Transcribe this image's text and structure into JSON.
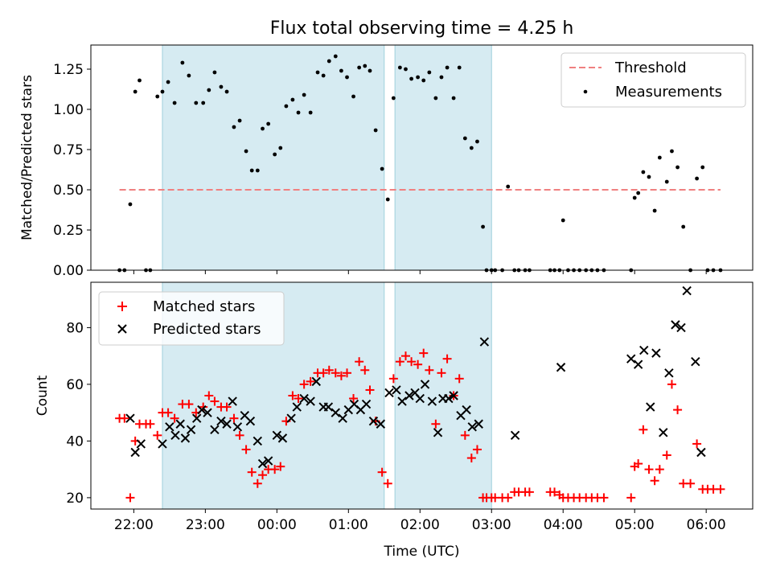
{
  "chart_data": [
    {
      "type": "scatter",
      "title": "Flux total observing time = 4.25 h",
      "xlabel": "",
      "ylabel": "Matched/Predicted stars",
      "xlim_hours": [
        21.4,
        30.65
      ],
      "ylim": [
        0.0,
        1.4
      ],
      "yticks": [
        "0.00",
        "0.25",
        "0.50",
        "0.75",
        "1.00",
        "1.25"
      ],
      "shaded_intervals_hours": [
        [
          22.4,
          25.5
        ],
        [
          25.65,
          27.0
        ]
      ],
      "threshold": {
        "name": "Threshold",
        "value": 0.5,
        "x_range_hours": [
          21.8,
          30.2
        ],
        "color": "#f08080"
      },
      "legend_location": "upper right",
      "series": [
        {
          "name": "Measurements",
          "color": "#000000",
          "x": [
            21.8,
            21.87,
            21.95,
            22.02,
            22.08,
            22.17,
            22.23,
            22.33,
            22.4,
            22.48,
            22.57,
            22.68,
            22.77,
            22.87,
            22.97,
            23.05,
            23.13,
            23.22,
            23.3,
            23.4,
            23.48,
            23.57,
            23.65,
            23.73,
            23.8,
            23.88,
            23.97,
            24.05,
            24.13,
            24.22,
            24.3,
            24.38,
            24.47,
            24.57,
            24.65,
            24.73,
            24.82,
            24.9,
            24.98,
            25.07,
            25.15,
            25.23,
            25.3,
            25.38,
            25.47,
            25.55,
            25.63,
            25.72,
            25.8,
            25.88,
            25.97,
            26.05,
            26.13,
            26.22,
            26.3,
            26.38,
            26.47,
            26.55,
            26.63,
            26.72,
            26.8,
            26.88,
            26.93,
            27.0,
            27.05,
            27.15,
            27.23,
            27.32,
            27.38,
            27.47,
            27.53,
            27.82,
            27.88,
            27.95,
            28.0,
            28.07,
            28.15,
            28.23,
            28.32,
            28.4,
            28.48,
            28.57,
            28.95,
            29.0,
            29.05,
            29.12,
            29.2,
            29.28,
            29.35,
            29.45,
            29.52,
            29.6,
            29.68,
            29.78,
            29.87,
            29.95,
            30.02,
            30.1,
            30.2
          ],
          "y": [
            0.0,
            0.0,
            0.41,
            1.11,
            1.18,
            0.0,
            0.0,
            1.08,
            1.11,
            1.17,
            1.04,
            1.29,
            1.21,
            1.04,
            1.04,
            1.12,
            1.23,
            1.14,
            1.11,
            0.89,
            0.93,
            0.74,
            0.62,
            0.62,
            0.88,
            0.91,
            0.72,
            0.76,
            1.02,
            1.06,
            0.98,
            1.09,
            0.98,
            1.23,
            1.21,
            1.3,
            1.33,
            1.24,
            1.2,
            1.08,
            1.26,
            1.27,
            1.24,
            0.87,
            0.63,
            0.44,
            1.07,
            1.26,
            1.25,
            1.19,
            1.2,
            1.18,
            1.23,
            1.07,
            1.2,
            1.26,
            1.07,
            1.26,
            0.82,
            0.76,
            0.8,
            0.27,
            0.0,
            0.0,
            0.0,
            0.0,
            0.52,
            0.0,
            0.0,
            0.0,
            0.0,
            0.0,
            0.0,
            0.0,
            0.31,
            0.0,
            0.0,
            0.0,
            0.0,
            0.0,
            0.0,
            0.0,
            0.0,
            0.45,
            0.48,
            0.61,
            0.58,
            0.37,
            0.7,
            0.55,
            0.74,
            0.64,
            0.27,
            0.0,
            0.57,
            0.64,
            0.0,
            0.0,
            0.0
          ]
        }
      ]
    },
    {
      "type": "scatter",
      "title": "",
      "xlabel": "Time (UTC)",
      "ylabel": "Count",
      "xlim_hours": [
        21.4,
        30.65
      ],
      "ylim": [
        16,
        96
      ],
      "yticks": [
        "20",
        "40",
        "60",
        "80"
      ],
      "xticks": [
        "22:00",
        "23:00",
        "00:00",
        "01:00",
        "02:00",
        "03:00",
        "04:00",
        "05:00",
        "06:00"
      ],
      "shaded_intervals_hours": [
        [
          22.4,
          25.5
        ],
        [
          25.65,
          27.0
        ]
      ],
      "legend_location": "upper left",
      "series": [
        {
          "name": "Matched stars",
          "marker": "+",
          "color": "#ff0000",
          "x": [
            21.8,
            21.87,
            21.95,
            22.02,
            22.08,
            22.17,
            22.23,
            22.33,
            22.4,
            22.48,
            22.57,
            22.68,
            22.77,
            22.87,
            22.97,
            23.05,
            23.13,
            23.22,
            23.3,
            23.4,
            23.48,
            23.57,
            23.65,
            23.73,
            23.8,
            23.88,
            23.97,
            24.05,
            24.13,
            24.22,
            24.3,
            24.38,
            24.47,
            24.57,
            24.65,
            24.73,
            24.82,
            24.9,
            24.98,
            25.07,
            25.15,
            25.23,
            25.3,
            25.38,
            25.47,
            25.55,
            25.63,
            25.72,
            25.8,
            25.88,
            25.97,
            26.05,
            26.13,
            26.22,
            26.3,
            26.38,
            26.47,
            26.55,
            26.63,
            26.72,
            26.8,
            26.88,
            26.93,
            27.0,
            27.05,
            27.15,
            27.23,
            27.32,
            27.38,
            27.47,
            27.53,
            27.82,
            27.88,
            27.95,
            28.0,
            28.07,
            28.15,
            28.23,
            28.32,
            28.4,
            28.48,
            28.57,
            28.95,
            29.0,
            29.05,
            29.12,
            29.2,
            29.28,
            29.35,
            29.45,
            29.52,
            29.6,
            29.68,
            29.78,
            29.87,
            29.95,
            30.02,
            30.1,
            30.2
          ],
          "y": [
            48,
            48,
            20,
            40,
            46,
            46,
            46,
            42,
            50,
            50,
            48,
            53,
            53,
            50,
            52,
            56,
            54,
            52,
            52,
            48,
            42,
            37,
            29,
            25,
            28,
            30,
            30,
            31,
            47,
            56,
            55,
            60,
            61,
            64,
            64,
            65,
            64,
            63,
            64,
            55,
            68,
            65,
            58,
            47,
            29,
            25,
            62,
            68,
            70,
            68,
            67,
            71,
            65,
            46,
            64,
            69,
            56,
            62,
            42,
            34,
            37,
            20,
            20,
            20,
            20,
            20,
            20,
            22,
            22,
            22,
            22,
            22,
            22,
            21,
            20,
            20,
            20,
            20,
            20,
            20,
            20,
            20,
            20,
            31,
            32,
            44,
            30,
            26,
            30,
            35,
            60,
            51,
            25,
            25,
            39,
            23,
            23,
            23,
            23
          ]
        },
        {
          "name": "Predicted stars",
          "marker": "x",
          "color": "#000000",
          "x": [
            21.95,
            22.02,
            22.1,
            22.4,
            22.5,
            22.58,
            22.65,
            22.72,
            22.8,
            22.88,
            22.95,
            23.03,
            23.13,
            23.22,
            23.3,
            23.38,
            23.45,
            23.55,
            23.63,
            23.73,
            23.8,
            23.88,
            24.0,
            24.08,
            24.2,
            24.28,
            24.38,
            24.47,
            24.55,
            24.65,
            24.72,
            24.82,
            24.92,
            25.0,
            25.08,
            25.17,
            25.25,
            25.35,
            25.45,
            25.57,
            25.67,
            25.75,
            25.85,
            25.93,
            26.0,
            26.07,
            26.17,
            26.25,
            26.32,
            26.4,
            26.47,
            26.57,
            26.65,
            26.73,
            26.82,
            26.9,
            27.33,
            27.97,
            28.95,
            29.05,
            29.13,
            29.22,
            29.3,
            29.4,
            29.48,
            29.57,
            29.65,
            29.73,
            29.85,
            29.93
          ],
          "y": [
            48,
            36,
            39,
            39,
            45,
            42,
            46,
            41,
            44,
            48,
            51,
            50,
            44,
            47,
            46,
            54,
            45,
            49,
            47,
            40,
            32,
            33,
            42,
            41,
            48,
            52,
            55,
            54,
            61,
            52,
            52,
            50,
            48,
            51,
            53,
            51,
            53,
            47,
            46,
            57,
            58,
            54,
            56,
            57,
            55,
            60,
            54,
            43,
            55,
            55,
            56,
            49,
            51,
            45,
            46,
            75,
            42,
            66,
            69,
            67,
            72,
            52,
            71,
            43,
            64,
            81,
            80,
            93,
            68,
            36
          ]
        }
      ]
    }
  ]
}
